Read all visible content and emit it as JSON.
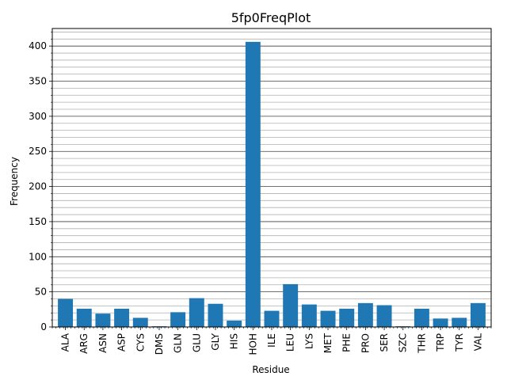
{
  "chart_data": {
    "type": "bar",
    "title": "5fp0FreqPlot",
    "xlabel": "Residue",
    "ylabel": "Frequency",
    "categories": [
      "ALA",
      "ARG",
      "ASN",
      "ASP",
      "CYS",
      "DMS",
      "GLN",
      "GLU",
      "GLY",
      "HIS",
      "HOH",
      "ILE",
      "LEU",
      "LYS",
      "MET",
      "PHE",
      "PRO",
      "SER",
      "SZC",
      "THR",
      "TRP",
      "TYR",
      "VAL"
    ],
    "values": [
      40,
      26,
      19,
      26,
      13,
      1,
      21,
      41,
      33,
      9,
      406,
      23,
      61,
      32,
      23,
      26,
      34,
      31,
      1,
      26,
      12,
      13,
      34
    ],
    "ylim": [
      0,
      425
    ],
    "yticks": [
      0,
      50,
      100,
      150,
      200,
      250,
      300,
      350,
      400
    ],
    "grid": true,
    "bar_color": "#1f77b4"
  }
}
